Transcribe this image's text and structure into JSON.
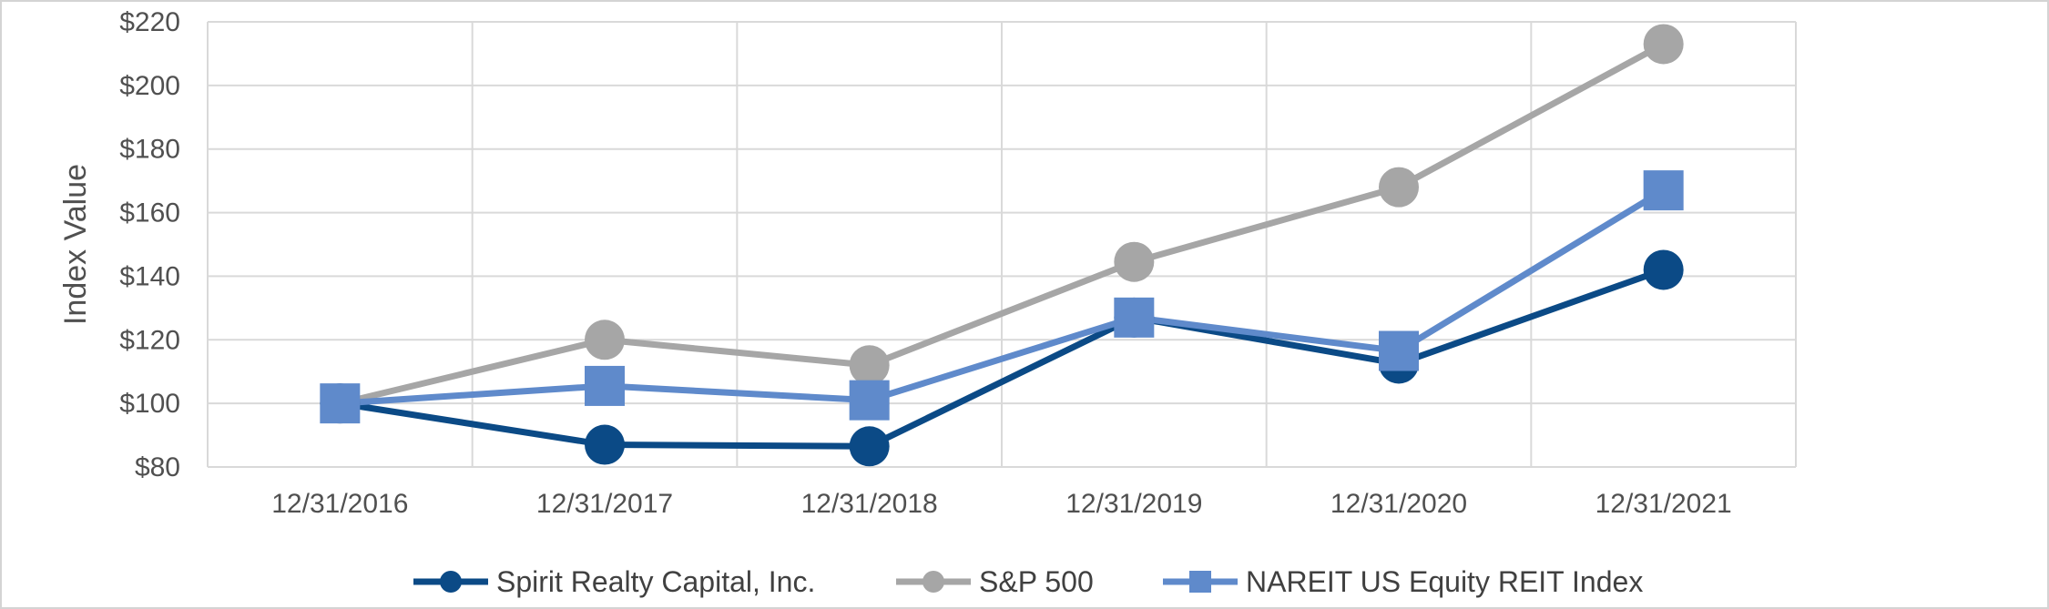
{
  "chart_data": {
    "type": "line",
    "title": "",
    "xlabel": "",
    "ylabel": "Index Value",
    "ylim": [
      80,
      220
    ],
    "yticks": [
      80,
      100,
      120,
      140,
      160,
      180,
      200,
      220
    ],
    "ytick_labels": [
      "$80",
      "$100",
      "$120",
      "$140",
      "$160",
      "$180",
      "$200",
      "$220"
    ],
    "categories": [
      "12/31/2016",
      "12/31/2017",
      "12/31/2018",
      "12/31/2019",
      "12/31/2020",
      "12/31/2021"
    ],
    "grid": true,
    "legend_position": "bottom",
    "series": [
      {
        "name": "Spirit Realty Capital, Inc.",
        "color": "#0B4A86",
        "marker": "circle",
        "values": [
          100,
          87,
          86.5,
          127,
          112.5,
          142
        ]
      },
      {
        "name": "S&P 500",
        "color": "#A6A6A6",
        "marker": "circle",
        "values": [
          100,
          120,
          112,
          144.5,
          168,
          213
        ]
      },
      {
        "name": "NAREIT US Equity REIT Index",
        "color": "#5F8ACB",
        "marker": "square",
        "values": [
          100,
          105.5,
          101,
          127,
          116.5,
          167
        ]
      }
    ]
  }
}
